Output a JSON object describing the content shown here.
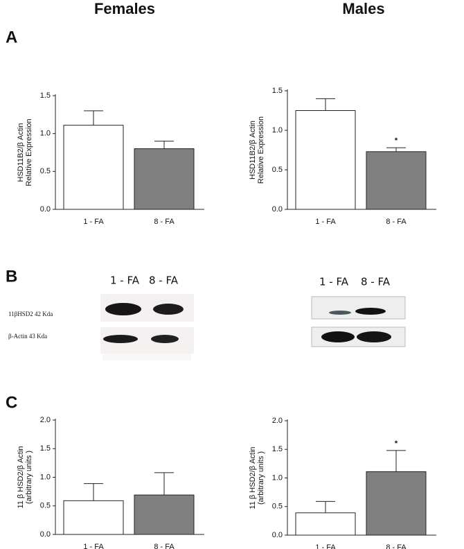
{
  "headers": [
    "Females",
    "Males"
  ],
  "panel_labels": [
    "A",
    "B",
    "C"
  ],
  "blot": {
    "female": {
      "lanes": [
        "1 - FA",
        "8 - FA"
      ],
      "rows": [
        "11βHSD2  42 Kda",
        "β-Actin   43 Kda"
      ]
    },
    "male": {
      "lanes": [
        "1 - FA",
        "8 - FA"
      ]
    }
  },
  "chart_data": [
    {
      "type": "bar",
      "y_label": [
        "HSD11B2/β Actin",
        "Relative Expression"
      ],
      "categories": [
        "1 - FA",
        "8 - FA"
      ],
      "values": [
        1.11,
        0.8
      ],
      "errors": [
        0.19,
        0.1
      ],
      "colors": [
        "#ffffff",
        "#808080"
      ],
      "ylim": [
        0,
        1.5
      ],
      "yticks": [
        {
          "value": 0,
          "label": "0.0"
        },
        0.5,
        {
          "value": 1,
          "label": "1.0"
        },
        1.5
      ],
      "annotations": []
    },
    {
      "type": "bar",
      "y_label": [
        "HSD11B2/β Actin",
        "Relative Expression"
      ],
      "categories": [
        "1 - FA",
        "8 - FA"
      ],
      "values": [
        1.25,
        0.73
      ],
      "errors": [
        0.15,
        0.05
      ],
      "colors": [
        "#ffffff",
        "#808080"
      ],
      "ylim": [
        0,
        1.5
      ],
      "yticks": [
        {
          "value": 0,
          "label": "0.0"
        },
        0.5,
        {
          "value": 1,
          "label": "1.0"
        },
        1.5
      ],
      "annotations": [
        {
          "text": "*",
          "category": "8 - FA"
        }
      ]
    },
    {
      "type": "bar",
      "y_label": [
        "11 β HSD2/β Actin",
        "(arbitrary units )"
      ],
      "categories": [
        "1 - FA",
        "8 - FA"
      ],
      "values": [
        0.59,
        0.69
      ],
      "errors": [
        0.3,
        0.39
      ],
      "colors": [
        "#ffffff",
        "#808080"
      ],
      "ylim": [
        0,
        2
      ],
      "yticks": [
        {
          "value": 0,
          "label": "0.0"
        },
        0.5,
        {
          "value": 1,
          "label": "1.0"
        },
        1.5,
        {
          "value": 2,
          "label": "2.0"
        }
      ],
      "annotations": []
    },
    {
      "type": "bar",
      "y_label": [
        "11 β HSD2/β Actin",
        "(arbitrary units )"
      ],
      "categories": [
        "1 - FA",
        "8 - FA"
      ],
      "values": [
        0.39,
        1.11
      ],
      "errors": [
        0.2,
        0.37
      ],
      "colors": [
        "#ffffff",
        "#808080"
      ],
      "ylim": [
        0,
        2
      ],
      "yticks": [
        {
          "value": 0,
          "label": "0.0"
        },
        0.5,
        {
          "value": 1,
          "label": "1.0"
        },
        1.5,
        {
          "value": 2,
          "label": "2.0"
        }
      ],
      "annotations": [
        {
          "text": "*",
          "category": "8 - FA"
        }
      ]
    }
  ]
}
